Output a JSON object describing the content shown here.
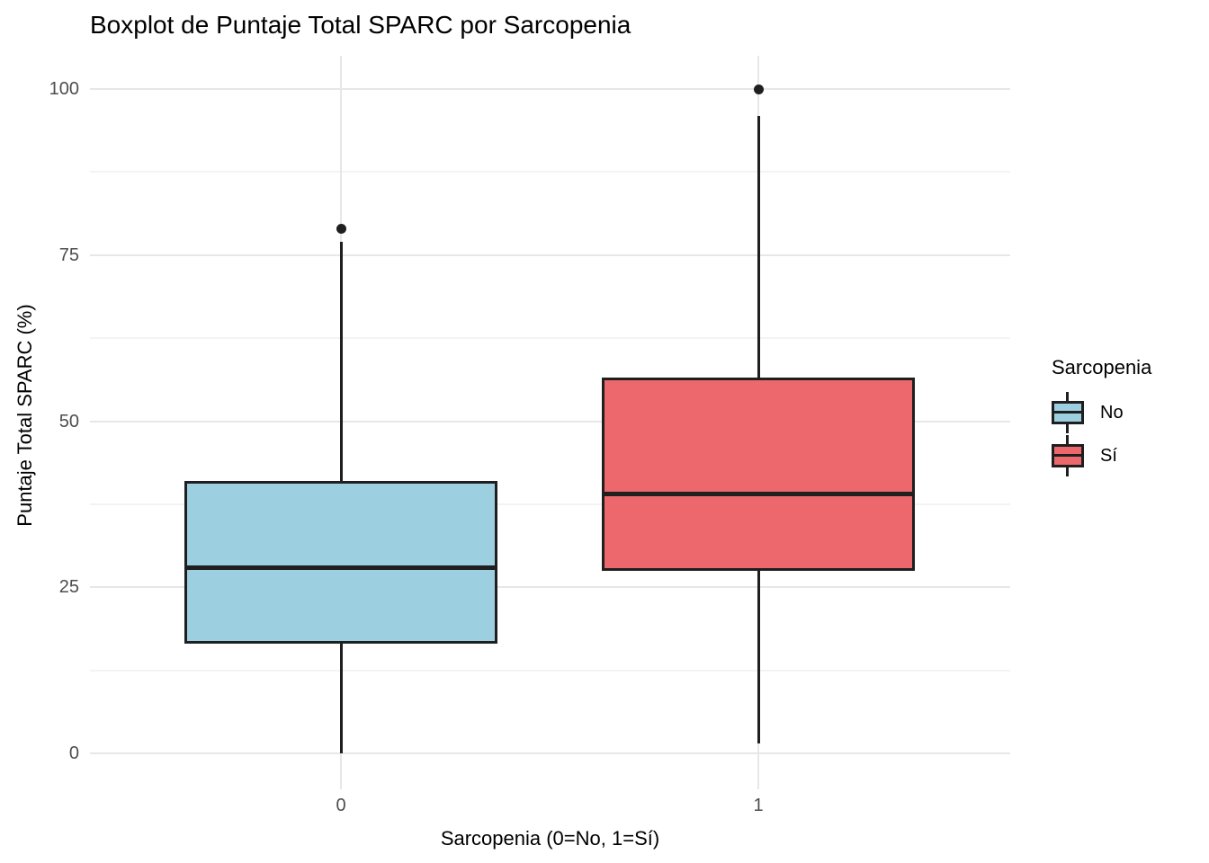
{
  "chart": {
    "title": "Boxplot de Puntaje Total SPARC por Sarcopenia",
    "xlabel": "Sarcopenia (0=No, 1=Sí)",
    "ylabel": "Puntaje Total SPARC (%)"
  },
  "legend": {
    "title": "Sarcopenia",
    "items": [
      {
        "label": "No",
        "color": "#9CCFE0"
      },
      {
        "label": "Sí",
        "color": "#EC686C"
      }
    ]
  },
  "chart_data": {
    "type": "boxplot",
    "title": "Boxplot de Puntaje Total SPARC por Sarcopenia",
    "xlabel": "Sarcopenia (0=No, 1=Sí)",
    "ylabel": "Puntaje Total SPARC (%)",
    "categories": [
      "0",
      "1"
    ],
    "y_ticks": [
      0,
      25,
      50,
      75,
      100
    ],
    "ylim": [
      -4.6,
      104.6
    ],
    "grid": {
      "horizontal_major": true,
      "horizontal_minor": true,
      "vertical_major": true
    },
    "minor_ticks": [
      12.5,
      37.5,
      62.5,
      87.5
    ],
    "legend_position": "right",
    "series": [
      {
        "name": "No",
        "category": "0",
        "fill": "#9CCFE0",
        "whisker_low": 0,
        "q1": 16.5,
        "median": 28,
        "q3": 41,
        "whisker_high": 77,
        "outliers": [
          79
        ]
      },
      {
        "name": "Sí",
        "category": "1",
        "fill": "#EC686C",
        "whisker_low": 1.5,
        "q1": 27.5,
        "median": 39,
        "q3": 56.5,
        "whisker_high": 96,
        "outliers": [
          100
        ]
      }
    ],
    "colors": {
      "box_border": "#1F1F1F",
      "median": "#1F1F1F",
      "whisker": "#1F1F1F",
      "outlier": "#1F1F1F",
      "grid_major": "#E7E7E7",
      "grid_minor": "#F3F3F3",
      "tick_label": "#4D4D4D",
      "background": "#FFFFFF"
    }
  }
}
